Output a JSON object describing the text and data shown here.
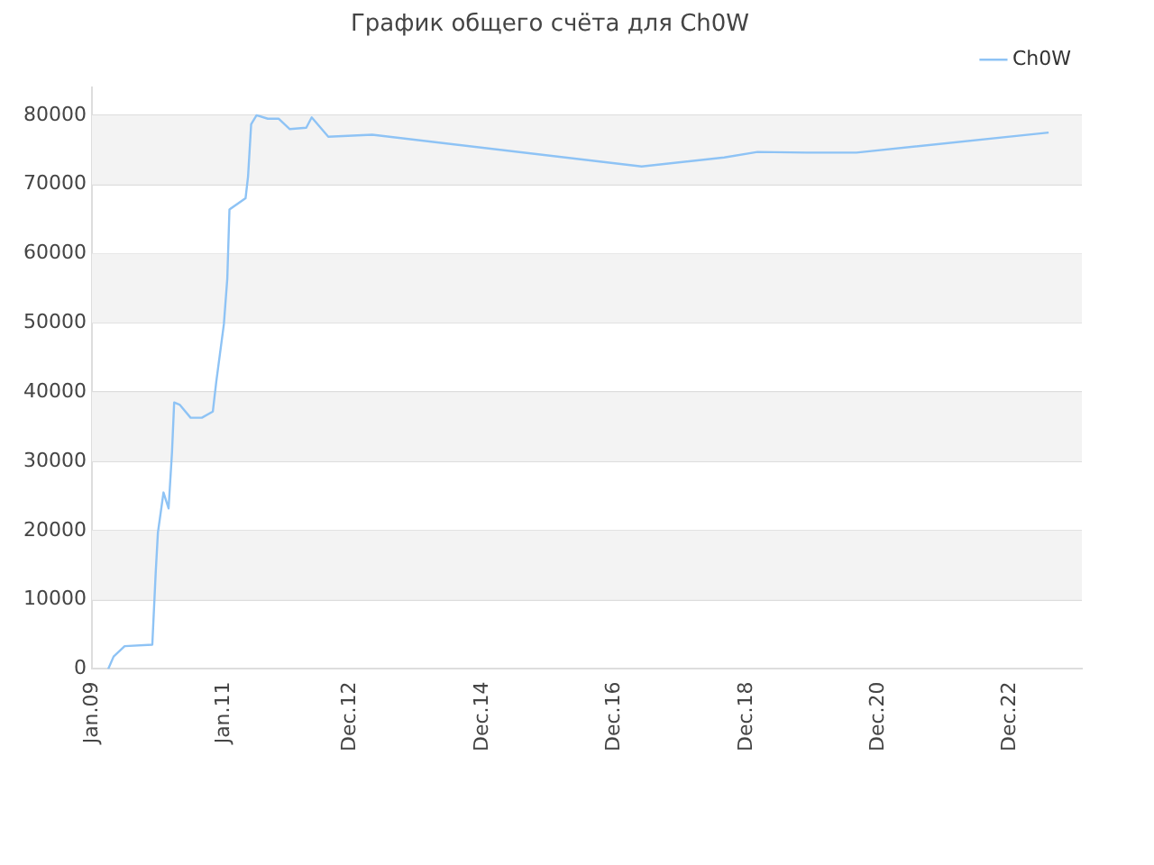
{
  "chart_data": {
    "type": "line",
    "title": "График общего счёта для Ch0W",
    "x": [
      "2009-04",
      "2009-05",
      "2009-07",
      "2009-12",
      "2009-12-20",
      "2010-01",
      "2010-02",
      "2010-03",
      "2010-03-20",
      "2010-04",
      "2010-05",
      "2010-07",
      "2010-09",
      "2010-11",
      "2010-11-20",
      "2011-01",
      "2011-01-20",
      "2011-02",
      "2011-05",
      "2011-05-15",
      "2011-06",
      "2011-07",
      "2011-09",
      "2011-11",
      "2012-01",
      "2012-04",
      "2012-05",
      "2012-08",
      "2013-04",
      "2017-05",
      "2018-08",
      "2019-02",
      "2019-11",
      "2020-08",
      "2023-07"
    ],
    "series": [
      {
        "name": "Ch0W",
        "color": "#8ec3f5",
        "values": [
          0,
          1800,
          3300,
          3500,
          14000,
          19700,
          25500,
          23200,
          31300,
          38500,
          38200,
          36300,
          36300,
          37200,
          41500,
          49800,
          56400,
          66400,
          68000,
          71200,
          78700,
          80000,
          79500,
          79500,
          78000,
          78200,
          79700,
          76900,
          77200,
          72600,
          73900,
          74700,
          74600,
          74600,
          77500
        ]
      }
    ],
    "xlim": [
      "2009-01",
      "2024-01"
    ],
    "xticks": [
      {
        "value": "2009-01",
        "label": "Jan.09"
      },
      {
        "value": "2011-01",
        "label": "Jan.11"
      },
      {
        "value": "2012-12",
        "label": "Dec.12"
      },
      {
        "value": "2014-12",
        "label": "Dec.14"
      },
      {
        "value": "2016-12",
        "label": "Dec.16"
      },
      {
        "value": "2018-12",
        "label": "Dec.18"
      },
      {
        "value": "2020-12",
        "label": "Dec.20"
      },
      {
        "value": "2022-12",
        "label": "Dec.22"
      }
    ],
    "ylim": [
      0,
      84000
    ],
    "yticks": [
      0,
      10000,
      20000,
      30000,
      40000,
      50000,
      60000,
      70000,
      80000
    ],
    "grid": "y",
    "legend": "top right",
    "marker": "none",
    "line_style": "solid"
  }
}
